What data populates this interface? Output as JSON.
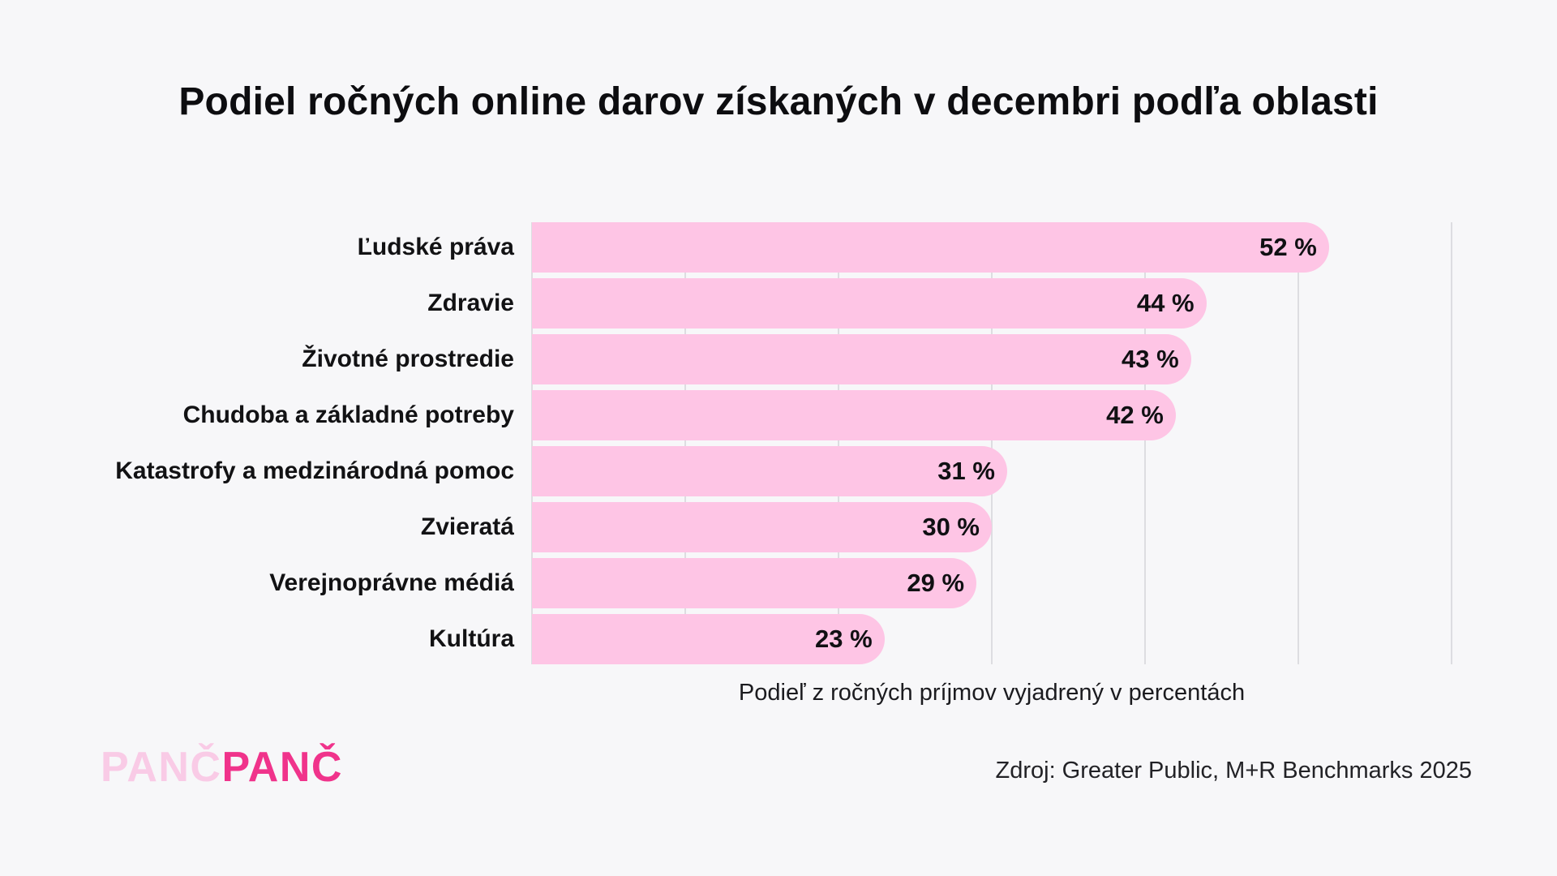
{
  "title": "Podiel ročných online darov získaných v decembri podľa oblasti",
  "chart_data": {
    "type": "bar",
    "orientation": "horizontal",
    "title": "Podiel ročných online darov získaných v decembri podľa oblasti",
    "categories": [
      "Ľudské práva",
      "Zdravie",
      "Životné prostredie",
      "Chudoba a základné potreby",
      "Katastrofy a medzinárodná pomoc",
      "Zvieratá",
      "Verejnoprávne médiá",
      "Kultúra"
    ],
    "values": [
      52,
      44,
      43,
      42,
      31,
      30,
      29,
      23
    ],
    "value_labels": [
      "52 %",
      "44 %",
      "43 %",
      "42 %",
      "31 %",
      "30 %",
      "29 %",
      "23 %"
    ],
    "xlabel": "Podieľ z ročných príjmov vyjadrený v percentách",
    "ylabel": "",
    "xlim": [
      0,
      60
    ],
    "gridline_step": 10,
    "grid": "vertical-only",
    "legend": "none",
    "bar_color": "#fec5e5",
    "grid_color": "#dddde1",
    "background_color": "#f7f7f9",
    "text_color": "#0d0d10"
  },
  "footer": {
    "logo_part1": "PANČ",
    "logo_part2": "PANČ",
    "logo_color1": "#f9cbe6",
    "logo_color2": "#f0338b",
    "source": "Zdroj: Greater Public, M+R Benchmarks 2025"
  }
}
